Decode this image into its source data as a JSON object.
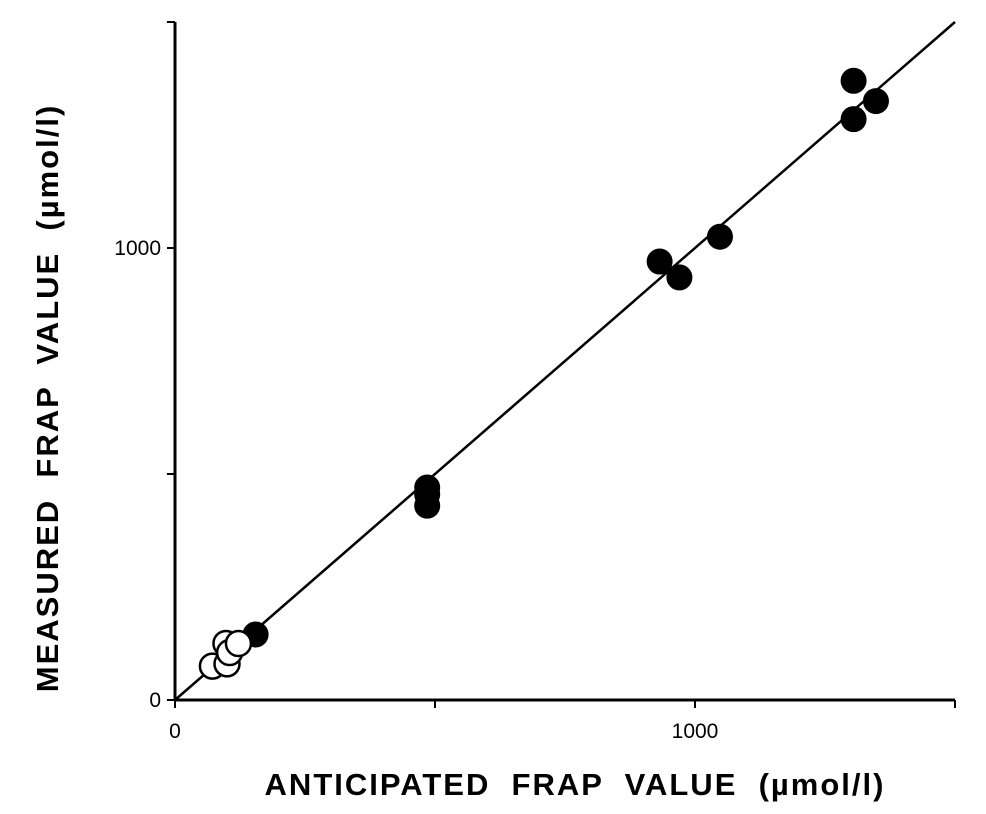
{
  "chart_data": {
    "type": "scatter",
    "title": "",
    "xlabel": "ANTICIPATED  FRAP  VALUE  (µmol/l)",
    "ylabel": "MEASURED  FRAP  VALUE  (µmol/l)",
    "xlim": [
      0,
      1500
    ],
    "ylim": [
      0,
      1500
    ],
    "xticks": [
      0,
      500,
      1000,
      1500
    ],
    "yticks": [
      0,
      500,
      1000,
      1500
    ],
    "x_tick_labels": [
      "0",
      "",
      "1000",
      ""
    ],
    "y_tick_labels": [
      "0",
      "",
      "1000",
      ""
    ],
    "grid": false,
    "reference_line": {
      "type": "identity",
      "from": [
        0,
        0
      ],
      "to": [
        1500,
        1500
      ]
    },
    "series": [
      {
        "marker": "filled-circle",
        "color": "#000000",
        "x": [
          155,
          485,
          485,
          485,
          932,
          970,
          1048,
          1305,
          1305,
          1348
        ],
        "y": [
          145,
          470,
          455,
          430,
          970,
          935,
          1025,
          1370,
          1285,
          1325
        ]
      },
      {
        "marker": "open-circle",
        "color": "#000000",
        "x": [
          72,
          100,
          98,
          105,
          122
        ],
        "y": [
          75,
          80,
          125,
          105,
          125
        ]
      }
    ]
  }
}
